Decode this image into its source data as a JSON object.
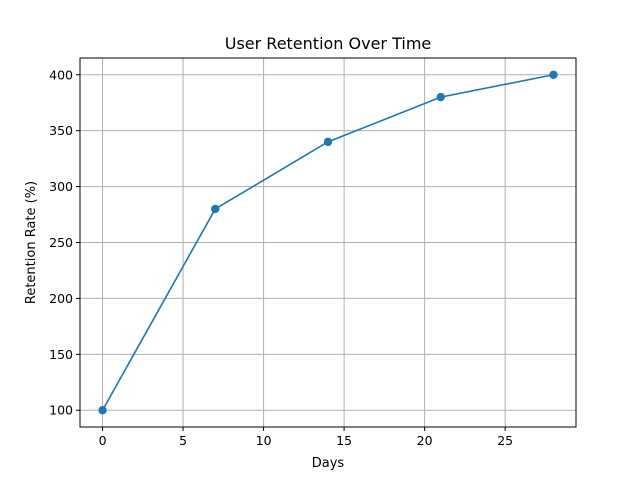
{
  "chart_data": {
    "type": "line",
    "title": "User Retention Over Time",
    "xlabel": "Days",
    "ylabel": "Retention Rate (%)",
    "x": [
      0,
      7,
      14,
      21,
      28
    ],
    "series": [
      {
        "values": [
          100,
          280,
          340,
          380,
          400
        ],
        "color": "#1f77b4",
        "marker": "circle"
      }
    ],
    "xlim": [
      -1.4,
      29.4
    ],
    "ylim": [
      85,
      415
    ],
    "xticks": [
      0,
      5,
      10,
      15,
      20,
      25
    ],
    "yticks": [
      100,
      150,
      200,
      250,
      300,
      350,
      400
    ],
    "grid": true
  }
}
